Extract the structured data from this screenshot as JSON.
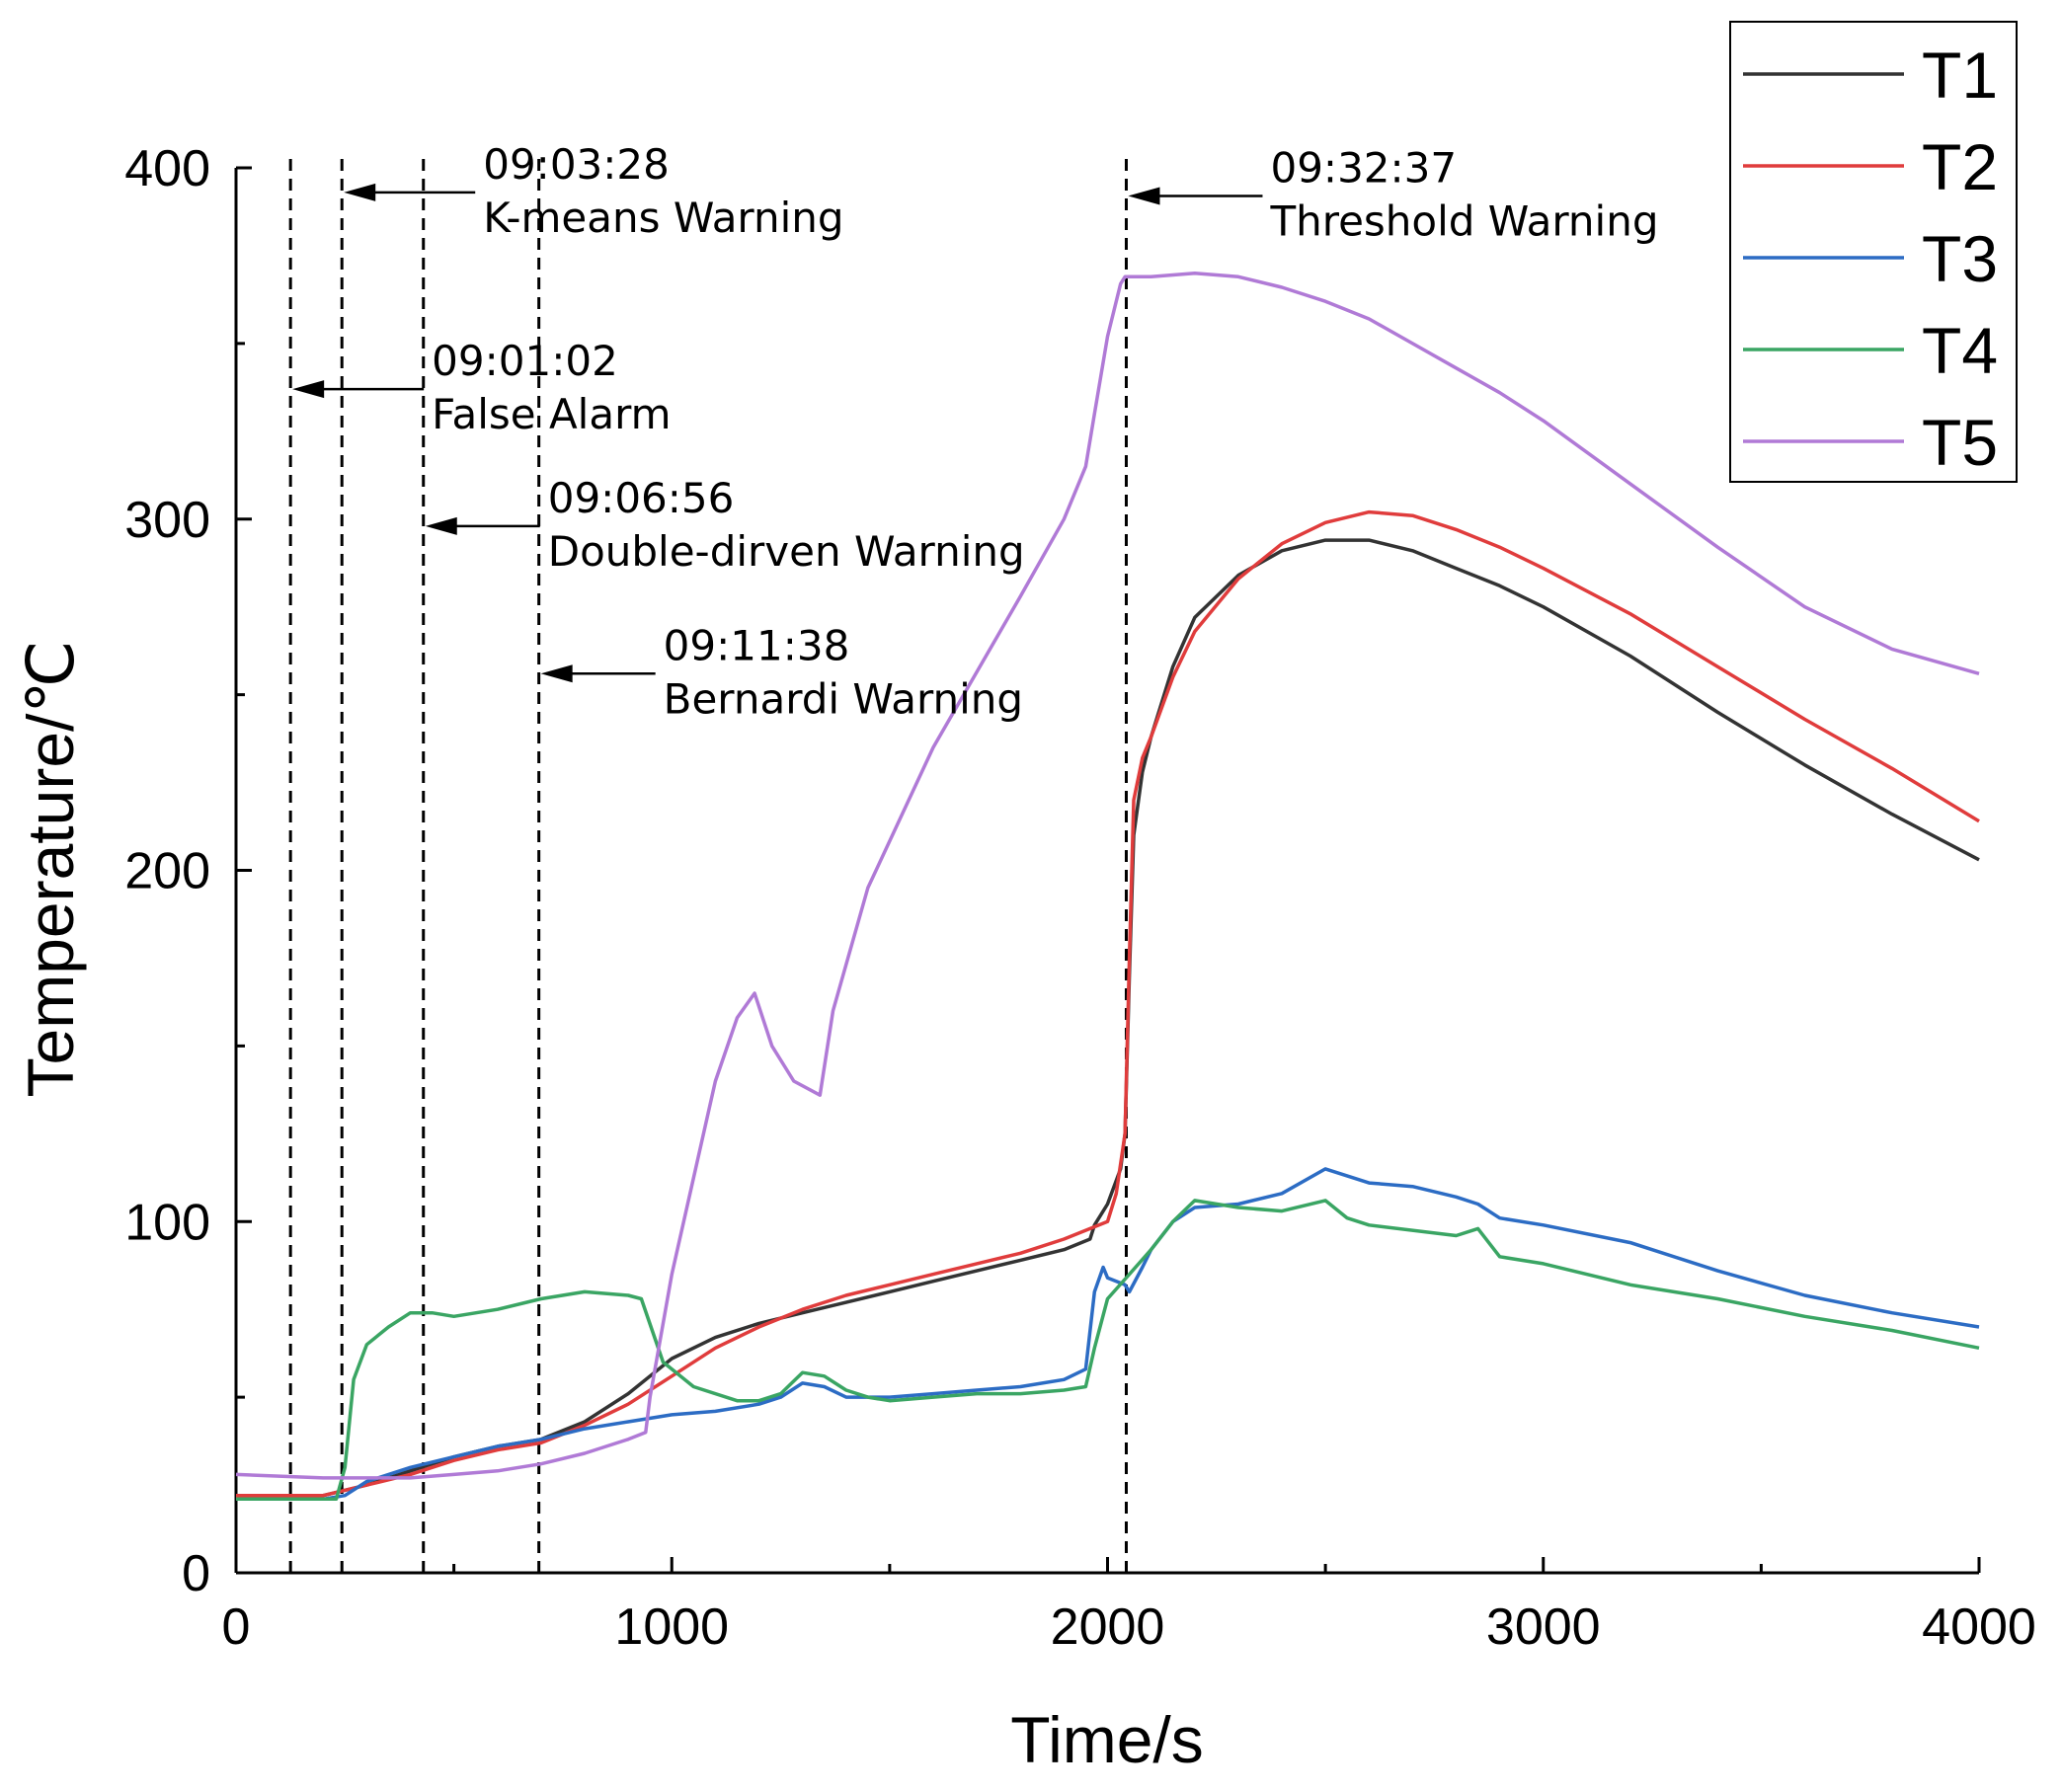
{
  "chart_data": {
    "type": "line",
    "title": "",
    "xlabel": "Time/s",
    "ylabel": "Temperature/℃",
    "xlim": [
      0,
      4000
    ],
    "ylim": [
      0,
      400
    ],
    "xticks": [
      0,
      1000,
      2000,
      3000,
      4000
    ],
    "yticks": [
      0,
      100,
      200,
      300,
      400
    ],
    "grid": false,
    "legend_position": "top-right",
    "series": [
      {
        "name": "T1",
        "color": "#333333",
        "points": [
          [
            0,
            22
          ],
          [
            200,
            22
          ],
          [
            300,
            25
          ],
          [
            400,
            29
          ],
          [
            500,
            33
          ],
          [
            600,
            36
          ],
          [
            700,
            38
          ],
          [
            800,
            43
          ],
          [
            900,
            51
          ],
          [
            1000,
            61
          ],
          [
            1100,
            67
          ],
          [
            1200,
            71
          ],
          [
            1300,
            74
          ],
          [
            1400,
            77
          ],
          [
            1500,
            80
          ],
          [
            1600,
            83
          ],
          [
            1700,
            86
          ],
          [
            1800,
            89
          ],
          [
            1900,
            92
          ],
          [
            1960,
            95
          ],
          [
            1970,
            99
          ],
          [
            2000,
            105
          ],
          [
            2030,
            115
          ],
          [
            2040,
            125
          ],
          [
            2050,
            170
          ],
          [
            2060,
            210
          ],
          [
            2080,
            228
          ],
          [
            2100,
            238
          ],
          [
            2150,
            258
          ],
          [
            2200,
            272
          ],
          [
            2300,
            284
          ],
          [
            2400,
            291
          ],
          [
            2500,
            294
          ],
          [
            2600,
            294
          ],
          [
            2700,
            291
          ],
          [
            2800,
            286
          ],
          [
            2900,
            281
          ],
          [
            3000,
            275
          ],
          [
            3200,
            261
          ],
          [
            3400,
            245
          ],
          [
            3600,
            230
          ],
          [
            3800,
            216
          ],
          [
            4000,
            203
          ]
        ]
      },
      {
        "name": "T2",
        "color": "#e03c3c",
        "points": [
          [
            0,
            22
          ],
          [
            200,
            22
          ],
          [
            300,
            25
          ],
          [
            400,
            28
          ],
          [
            500,
            32
          ],
          [
            600,
            35
          ],
          [
            700,
            37
          ],
          [
            800,
            42
          ],
          [
            900,
            48
          ],
          [
            1000,
            56
          ],
          [
            1100,
            64
          ],
          [
            1200,
            70
          ],
          [
            1300,
            75
          ],
          [
            1400,
            79
          ],
          [
            1500,
            82
          ],
          [
            1600,
            85
          ],
          [
            1700,
            88
          ],
          [
            1800,
            91
          ],
          [
            1900,
            95
          ],
          [
            1960,
            98
          ],
          [
            2000,
            100
          ],
          [
            2020,
            108
          ],
          [
            2040,
            125
          ],
          [
            2050,
            175
          ],
          [
            2060,
            220
          ],
          [
            2080,
            232
          ],
          [
            2100,
            238
          ],
          [
            2150,
            255
          ],
          [
            2200,
            268
          ],
          [
            2300,
            283
          ],
          [
            2400,
            293
          ],
          [
            2500,
            299
          ],
          [
            2600,
            302
          ],
          [
            2700,
            301
          ],
          [
            2800,
            297
          ],
          [
            2900,
            292
          ],
          [
            3000,
            286
          ],
          [
            3200,
            273
          ],
          [
            3400,
            258
          ],
          [
            3600,
            243
          ],
          [
            3800,
            229
          ],
          [
            4000,
            214
          ]
        ]
      },
      {
        "name": "T3",
        "color": "#2c6cc4",
        "points": [
          [
            0,
            21
          ],
          [
            200,
            21
          ],
          [
            250,
            22
          ],
          [
            300,
            26
          ],
          [
            400,
            30
          ],
          [
            500,
            33
          ],
          [
            600,
            36
          ],
          [
            700,
            38
          ],
          [
            800,
            41
          ],
          [
            900,
            43
          ],
          [
            1000,
            45
          ],
          [
            1100,
            46
          ],
          [
            1200,
            48
          ],
          [
            1250,
            50
          ],
          [
            1300,
            54
          ],
          [
            1350,
            53
          ],
          [
            1400,
            50
          ],
          [
            1500,
            50
          ],
          [
            1600,
            51
          ],
          [
            1700,
            52
          ],
          [
            1800,
            53
          ],
          [
            1900,
            55
          ],
          [
            1950,
            58
          ],
          [
            1970,
            80
          ],
          [
            1990,
            87
          ],
          [
            2000,
            84
          ],
          [
            2040,
            82
          ],
          [
            2050,
            80
          ],
          [
            2080,
            87
          ],
          [
            2100,
            92
          ],
          [
            2150,
            100
          ],
          [
            2200,
            104
          ],
          [
            2300,
            105
          ],
          [
            2400,
            108
          ],
          [
            2500,
            115
          ],
          [
            2600,
            111
          ],
          [
            2700,
            110
          ],
          [
            2800,
            107
          ],
          [
            2850,
            105
          ],
          [
            2900,
            101
          ],
          [
            3000,
            99
          ],
          [
            3200,
            94
          ],
          [
            3400,
            86
          ],
          [
            3600,
            79
          ],
          [
            3800,
            74
          ],
          [
            4000,
            70
          ]
        ]
      },
      {
        "name": "T4",
        "color": "#3aa563",
        "points": [
          [
            0,
            21
          ],
          [
            200,
            21
          ],
          [
            230,
            21
          ],
          [
            250,
            30
          ],
          [
            270,
            55
          ],
          [
            300,
            65
          ],
          [
            350,
            70
          ],
          [
            400,
            74
          ],
          [
            450,
            74
          ],
          [
            500,
            73
          ],
          [
            600,
            75
          ],
          [
            700,
            78
          ],
          [
            800,
            80
          ],
          [
            900,
            79
          ],
          [
            930,
            78
          ],
          [
            980,
            60
          ],
          [
            1050,
            53
          ],
          [
            1150,
            49
          ],
          [
            1200,
            49
          ],
          [
            1250,
            51
          ],
          [
            1300,
            57
          ],
          [
            1350,
            56
          ],
          [
            1400,
            52
          ],
          [
            1450,
            50
          ],
          [
            1500,
            49
          ],
          [
            1600,
            50
          ],
          [
            1700,
            51
          ],
          [
            1800,
            51
          ],
          [
            1900,
            52
          ],
          [
            1950,
            53
          ],
          [
            1970,
            64
          ],
          [
            2000,
            78
          ],
          [
            2050,
            85
          ],
          [
            2100,
            92
          ],
          [
            2150,
            100
          ],
          [
            2200,
            106
          ],
          [
            2300,
            104
          ],
          [
            2400,
            103
          ],
          [
            2500,
            106
          ],
          [
            2550,
            101
          ],
          [
            2600,
            99
          ],
          [
            2800,
            96
          ],
          [
            2850,
            98
          ],
          [
            2900,
            90
          ],
          [
            3000,
            88
          ],
          [
            3200,
            82
          ],
          [
            3400,
            78
          ],
          [
            3600,
            73
          ],
          [
            3800,
            69
          ],
          [
            4000,
            64
          ]
        ]
      },
      {
        "name": "T5",
        "color": "#b07ad6",
        "points": [
          [
            0,
            28
          ],
          [
            200,
            27
          ],
          [
            300,
            27
          ],
          [
            400,
            27
          ],
          [
            500,
            28
          ],
          [
            600,
            29
          ],
          [
            700,
            31
          ],
          [
            800,
            34
          ],
          [
            900,
            38
          ],
          [
            940,
            40
          ],
          [
            950,
            50
          ],
          [
            1000,
            85
          ],
          [
            1100,
            140
          ],
          [
            1150,
            158
          ],
          [
            1190,
            165
          ],
          [
            1230,
            150
          ],
          [
            1280,
            140
          ],
          [
            1340,
            136
          ],
          [
            1370,
            160
          ],
          [
            1450,
            195
          ],
          [
            1600,
            235
          ],
          [
            1800,
            278
          ],
          [
            1900,
            300
          ],
          [
            1950,
            315
          ],
          [
            1970,
            330
          ],
          [
            2000,
            352
          ],
          [
            2030,
            367
          ],
          [
            2040,
            369
          ],
          [
            2100,
            369
          ],
          [
            2200,
            370
          ],
          [
            2300,
            369
          ],
          [
            2400,
            366
          ],
          [
            2500,
            362
          ],
          [
            2600,
            357
          ],
          [
            2700,
            350
          ],
          [
            2800,
            343
          ],
          [
            2900,
            336
          ],
          [
            3000,
            328
          ],
          [
            3200,
            310
          ],
          [
            3400,
            292
          ],
          [
            3600,
            275
          ],
          [
            3800,
            263
          ],
          [
            4000,
            256
          ]
        ]
      }
    ],
    "annotations": [
      {
        "time_label": "09:01:02",
        "text": "False Alarm",
        "x": 125,
        "arrow_y": 337
      },
      {
        "time_label": "09:03:28",
        "text": "K-means Warning",
        "x": 243,
        "arrow_y": 393
      },
      {
        "time_label": "09:06:56",
        "text": "Double-dirven Warning",
        "x": 430,
        "arrow_y": 298
      },
      {
        "time_label": "09:11:38",
        "text": "Bernardi Warning",
        "x": 695,
        "arrow_y": 256
      },
      {
        "time_label": "09:32:37",
        "text": "Threshold Warning",
        "x": 2043,
        "arrow_y": 392
      }
    ]
  }
}
